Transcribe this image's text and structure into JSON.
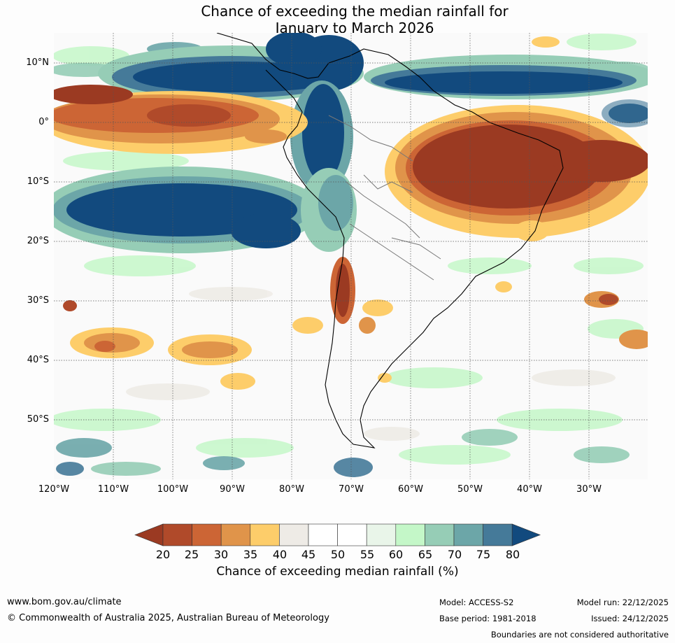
{
  "title": {
    "line1": "Chance of exceeding the median rainfall for",
    "line2": "January to March 2026"
  },
  "map": {
    "lat_labels": [
      "10°N",
      "0°",
      "10°S",
      "20°S",
      "30°S",
      "40°S",
      "50°S"
    ],
    "lon_labels": [
      "120°W",
      "110°W",
      "100°W",
      "90°W",
      "80°W",
      "70°W",
      "60°W",
      "50°W",
      "40°W",
      "30°W"
    ],
    "lat_values": [
      10,
      0,
      -10,
      -20,
      -30,
      -40,
      -50
    ],
    "lon_values": [
      -120,
      -110,
      -100,
      -90,
      -80,
      -70,
      -60,
      -50,
      -40,
      -30
    ],
    "extent": {
      "lon_min": -120,
      "lon_max": -20,
      "lat_min": -60,
      "lat_max": 15
    }
  },
  "colorbar": {
    "ticks": [
      "20",
      "25",
      "30",
      "35",
      "40",
      "45",
      "50",
      "55",
      "60",
      "65",
      "70",
      "75",
      "80"
    ],
    "colors": [
      "#9b3a22",
      "#b04a2a",
      "#cc6535",
      "#e0944a",
      "#fdcd6a",
      "#eeebe6",
      "#ffffff",
      "#ffffff",
      "#e9f5e9",
      "#c4f7c8",
      "#96cdb6",
      "#6ca6a8",
      "#457a99",
      "#124a7e"
    ],
    "title": "Chance of exceeding median rainfall (%)"
  },
  "footer": {
    "website": "www.bom.gov.au/climate",
    "copyright": "© Commonwealth of Australia 2025, Australian Bureau of Meteorology",
    "model": "Model: ACCESS-S2",
    "base_period": "Base period: 1981-2018",
    "model_run": "Model run: 22/12/2025",
    "issued": "Issued: 24/12/2025",
    "disclaimer": "Boundaries are not considered authoritative"
  }
}
